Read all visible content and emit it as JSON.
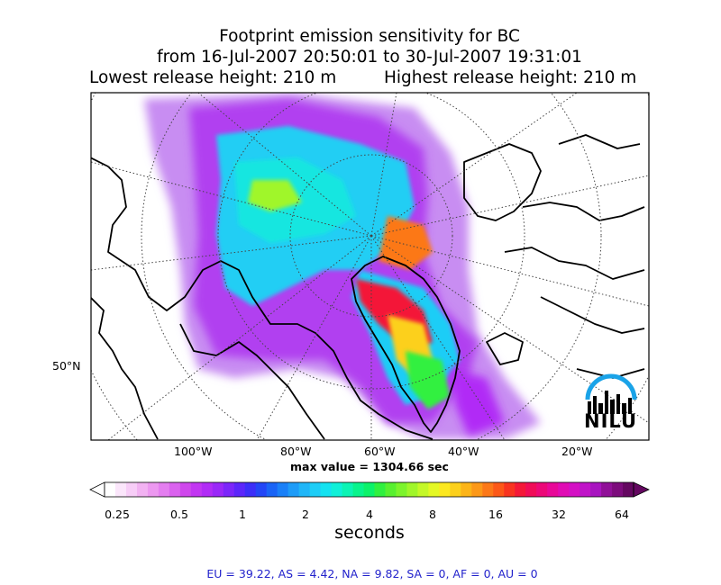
{
  "title": {
    "line1": "Footprint emission sensitivity for BC",
    "line2": "from 16-Jul-2007 20:50:01 to 30-Jul-2007 19:31:01",
    "lowest": "Lowest release height: 210 m",
    "highest": "Highest release height: 210 m"
  },
  "map": {
    "lon_labels": [
      "100°W",
      "80°W",
      "60°W",
      "40°W",
      "20°W"
    ],
    "lat_labels": [
      "50°N"
    ],
    "max_value_text": "max value = 1304.66 sec",
    "logo_text": "NILU",
    "logo_icon": "nilu-arc-skyline-icon"
  },
  "colorbar": {
    "tick_labels": [
      "0.25",
      "0.5",
      "1",
      "2",
      "4",
      "8",
      "16",
      "32",
      "64"
    ],
    "label": "seconds",
    "scale": "log2",
    "extend": "both",
    "colors": [
      "#ffffff",
      "#fbe6fb",
      "#f7cdf7",
      "#f2b2f2",
      "#ec98f0",
      "#e47ef0",
      "#da62ee",
      "#cf47ec",
      "#c236f2",
      "#b12cf6",
      "#9a28f8",
      "#7c26fa",
      "#5c26fa",
      "#3c2ef8",
      "#2346f6",
      "#1a64f6",
      "#1a80f8",
      "#1e9cf8",
      "#20b6f8",
      "#1ecdf6",
      "#14e2f0",
      "#10f0d8",
      "#0cf4b4",
      "#08f48c",
      "#0cf26a",
      "#30f040",
      "#58f030",
      "#7cf42c",
      "#a0f62a",
      "#c4f828",
      "#e4f824",
      "#fce820",
      "#fcd01c",
      "#fcb418",
      "#fc9818",
      "#fc7818",
      "#fc5818",
      "#f83420",
      "#f41838",
      "#f00c58",
      "#ec0878",
      "#e80898",
      "#e00cb4",
      "#d410c4",
      "#c014c8",
      "#a814c0",
      "#901098",
      "#7c0c7c",
      "#640860"
    ]
  },
  "stats": "EU = 39.22,  AS = 4.42,  NA = 9.82,  SA = 0,  AF = 0,  AU = 0"
}
